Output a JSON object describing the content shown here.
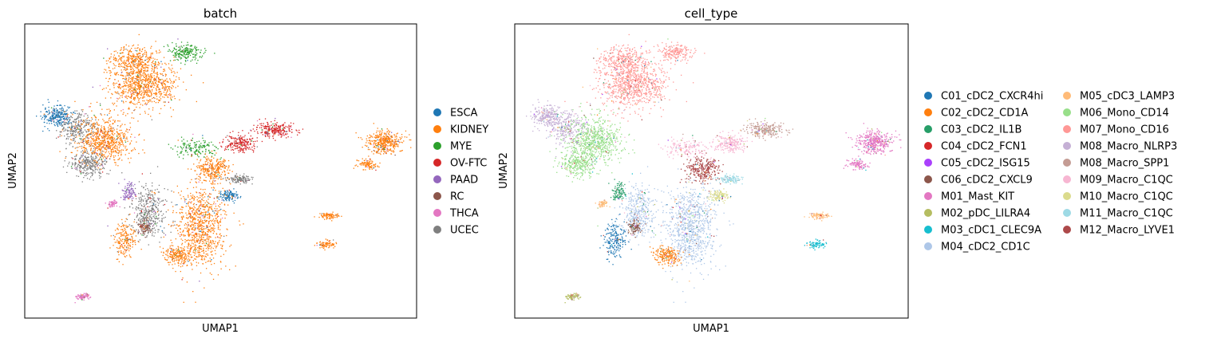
{
  "chart_data": [
    {
      "type": "scatter",
      "title": "batch",
      "xlabel": "UMAP1",
      "ylabel": "UMAP2",
      "ticks": false,
      "grid": false,
      "legend_placement": "right",
      "legend": [
        {
          "name": "ESCA",
          "color": "#1f77b4"
        },
        {
          "name": "KIDNEY",
          "color": "#ff7f0e"
        },
        {
          "name": "MYE",
          "color": "#2ca02c"
        },
        {
          "name": "OV-FTC",
          "color": "#d62728"
        },
        {
          "name": "PAAD",
          "color": "#9467bd"
        },
        {
          "name": "RC",
          "color": "#8c564b"
        },
        {
          "name": "THCA",
          "color": "#e377c2"
        },
        {
          "name": "UCEC",
          "color": "#7f7f7f"
        }
      ]
    },
    {
      "type": "scatter",
      "title": "cell_type",
      "xlabel": "UMAP1",
      "ylabel": "UMAP2",
      "ticks": false,
      "grid": false,
      "legend_placement": "right",
      "legend": [
        {
          "name": "C01_cDC2_CXCR4hi",
          "color": "#1f77b4"
        },
        {
          "name": "C02_cDC2_CD1A",
          "color": "#ff7f0e"
        },
        {
          "name": "C03_cDC2_IL1B",
          "color": "#279e68"
        },
        {
          "name": "C04_cDC2_FCN1",
          "color": "#d62728"
        },
        {
          "name": "C05_cDC2_ISG15",
          "color": "#aa40fc"
        },
        {
          "name": "C06_cDC2_CXCL9",
          "color": "#8c564b"
        },
        {
          "name": "M01_Mast_KIT",
          "color": "#e377c2"
        },
        {
          "name": "M02_pDC_LILRA4",
          "color": "#b5bd61"
        },
        {
          "name": "M03_cDC1_CLEC9A",
          "color": "#17becf"
        },
        {
          "name": "M04_cDC2_CD1C",
          "color": "#aec7e8"
        },
        {
          "name": "M05_cDC3_LAMP3",
          "color": "#ffbb78"
        },
        {
          "name": "M06_Mono_CD14",
          "color": "#98df8a"
        },
        {
          "name": "M07_Mono_CD16",
          "color": "#ff9896"
        },
        {
          "name": "M08_Macro_NLRP3",
          "color": "#c5b0d5"
        },
        {
          "name": "M08_Macro_SPP1",
          "color": "#c49c94"
        },
        {
          "name": "M09_Macro_C1QC",
          "color": "#f7b6d2"
        },
        {
          "name": "M10_Macro_C1QC",
          "color": "#dbdb8d"
        },
        {
          "name": "M11_Macro_C1QC",
          "color": "#9edae5"
        },
        {
          "name": "M12_Macro_LYVE1",
          "color": "#ad494a"
        }
      ]
    }
  ]
}
